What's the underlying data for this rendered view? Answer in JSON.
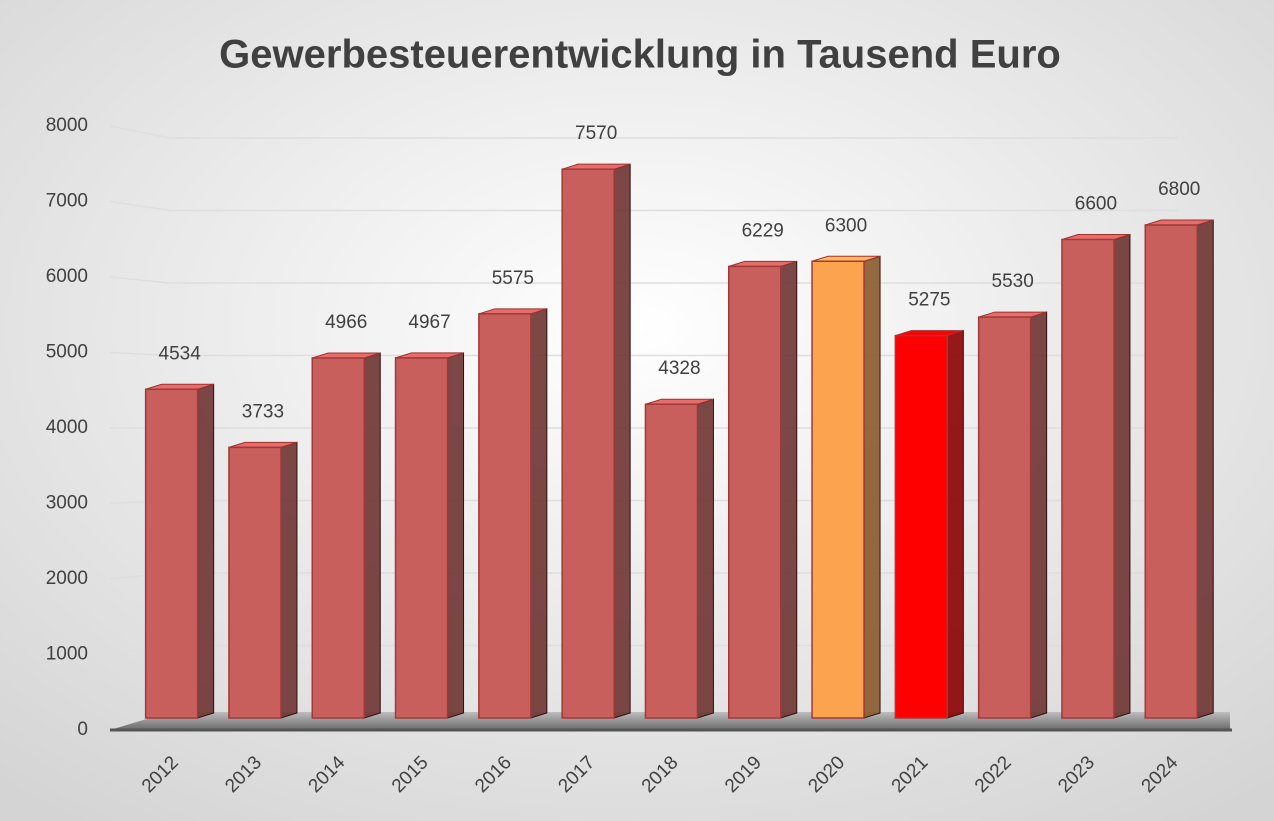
{
  "chart_data": {
    "type": "bar",
    "title": "Gewerbesteuerentwicklung in Tausend Euro",
    "categories": [
      "2012",
      "2013",
      "2014",
      "2015",
      "2016",
      "2017",
      "2018",
      "2019",
      "2020",
      "2021",
      "2022",
      "2023",
      "2024"
    ],
    "values": [
      4534,
      3733,
      4966,
      4967,
      5575,
      7570,
      4328,
      6229,
      6300,
      5275,
      5530,
      6600,
      6800
    ],
    "colors": [
      "#c95f5c",
      "#c95f5c",
      "#c95f5c",
      "#c95f5c",
      "#c95f5c",
      "#c95f5c",
      "#c95f5c",
      "#c95f5c",
      "#fba34f",
      "#ff0000",
      "#c95f5c",
      "#c95f5c",
      "#c95f5c"
    ],
    "ylim": [
      0,
      8000
    ],
    "yticks": [
      0,
      1000,
      2000,
      3000,
      4000,
      5000,
      6000,
      7000,
      8000
    ],
    "grid": true
  }
}
